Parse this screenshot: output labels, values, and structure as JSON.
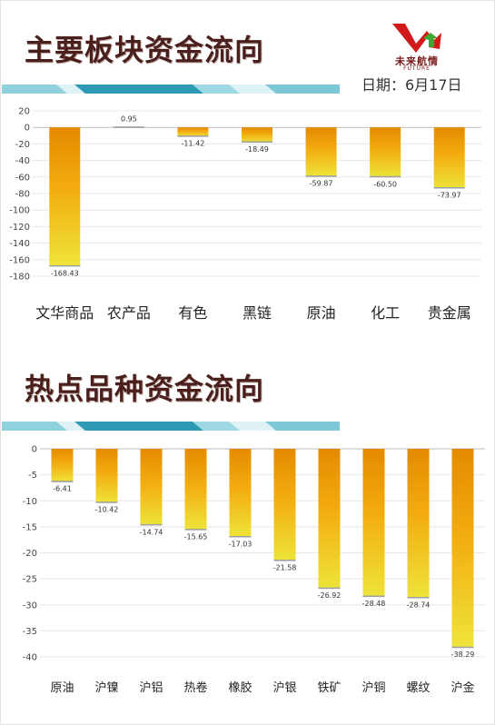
{
  "header": {
    "title": "主要板块资金流向",
    "date_label": "日期：6月17日",
    "logo_text": "未来航情",
    "logo_sub": "FUTURE"
  },
  "section2": {
    "title": "热点品种资金流向"
  },
  "colors": {
    "title": "#4a1f1c",
    "bar_top": "#e48a00",
    "bar_bottom": "#eee43a",
    "band_dark": "#2e99b4",
    "band_light": "#9ed8e2"
  },
  "chart_data": [
    {
      "type": "bar",
      "categories": [
        "文华商品",
        "农产品",
        "有色",
        "黑链",
        "原油",
        "化工",
        "贵金属"
      ],
      "values": [
        -168.43,
        0.95,
        -11.42,
        -18.49,
        -59.87,
        -60.5,
        -73.97
      ],
      "value_labels": [
        "-168.43",
        "0.95",
        "-11.42",
        "-18.49",
        "-59.87",
        "-60.50",
        "-73.97"
      ],
      "yticks": [
        20,
        0,
        -20,
        -40,
        -60,
        -80,
        -100,
        -120,
        -140,
        -160,
        -180
      ],
      "ylim": [
        -180,
        20
      ],
      "grid": true
    },
    {
      "type": "bar",
      "categories": [
        "原油",
        "沪镍",
        "沪铝",
        "热卷",
        "橡胶",
        "沪银",
        "铁矿",
        "沪铜",
        "螺纹",
        "沪金"
      ],
      "values": [
        -6.41,
        -10.42,
        -14.74,
        -15.65,
        -17.03,
        -21.58,
        -26.92,
        -28.48,
        -28.74,
        -38.29
      ],
      "value_labels": [
        "-6.41",
        "-10.42",
        "-14.74",
        "-15.65",
        "-17.03",
        "-21.58",
        "-26.92",
        "-28.48",
        "-28.74",
        "-38.29"
      ],
      "yticks": [
        0,
        -5,
        -10,
        -15,
        -20,
        -25,
        -30,
        -35,
        -40
      ],
      "ylim": [
        -40,
        0
      ],
      "grid": true
    }
  ]
}
